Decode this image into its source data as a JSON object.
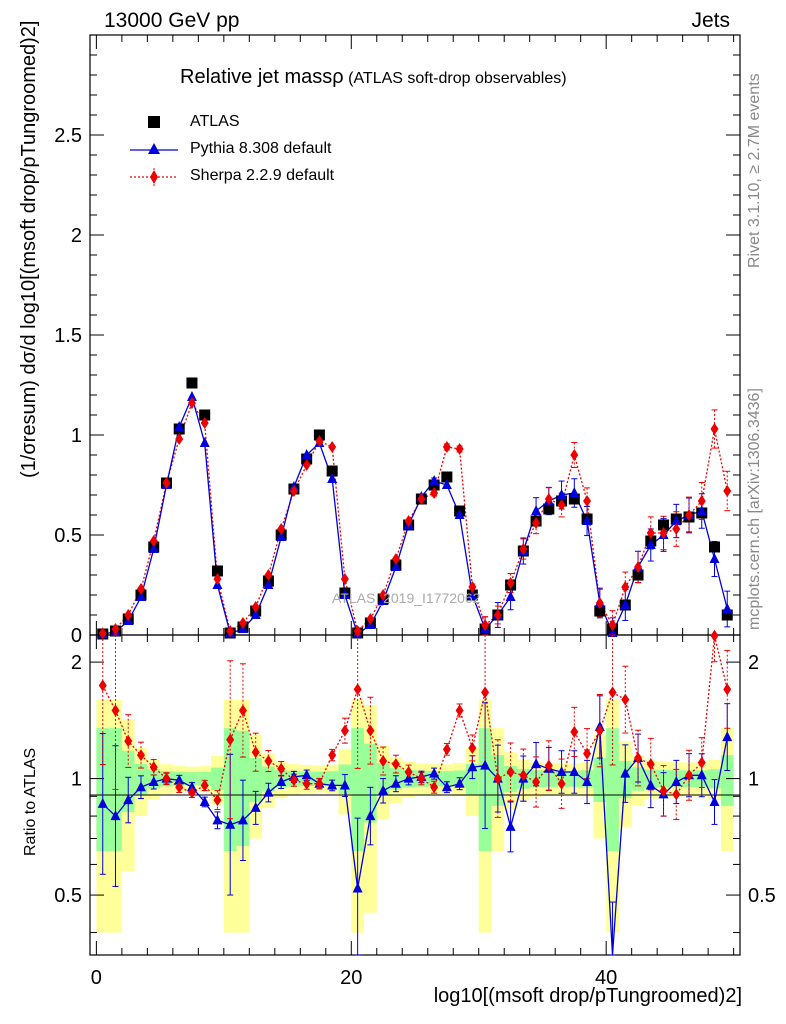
{
  "header": {
    "energy_label": "13000 GeV pp",
    "process_label": "Jets",
    "title_main": "Relative jet massρ",
    "title_sub": "(ATLAS soft-drop observables)"
  },
  "side": {
    "rivet_label": "Rivet 3.1.10, ≥ 2.7M events",
    "mcplots_label": "mcplots.cern.ch [arXiv:1306.3436]",
    "watermark": "ATLAS_2019_I1772062"
  },
  "axes": {
    "ylabel_top": "(1/σresum) dσ/d log10[(msoft drop/pTungroomed)2]",
    "ylabel_ratio": "Ratio to ATLAS",
    "xlabel": "log10[(msoft drop/pTungroomed)2]"
  },
  "legend": {
    "atlas": "ATLAS",
    "pythia": "Pythia 8.308 default",
    "sherpa": "Sherpa 2.2.9 default"
  },
  "colors": {
    "atlas": "#000000",
    "pythia": "#0000dd",
    "sherpa": "#ee0000",
    "band_inner": "#99ff99",
    "band_outer": "#ffff99"
  },
  "chart_data": {
    "type": "scatter",
    "x_ticks": [
      0,
      20,
      40
    ],
    "x_tick_labels": [
      "0",
      "20",
      "40"
    ],
    "xlim": [
      -0.5,
      50.5
    ],
    "top": {
      "ylim": [
        0,
        3.0
      ],
      "y_ticks": [
        0,
        0.5,
        1,
        1.5,
        2,
        2.5
      ],
      "y_tick_labels": [
        "0",
        "0.5",
        "1",
        "1.5",
        "2",
        "2.5"
      ]
    },
    "ratio": {
      "ylim": [
        0.35,
        2.35
      ],
      "y_ticks": [
        0.5,
        1,
        2
      ],
      "y_tick_labels": [
        "0.5",
        "1",
        "2"
      ]
    },
    "x": [
      0.5,
      1.5,
      2.5,
      3.5,
      4.5,
      5.5,
      6.5,
      7.5,
      8.5,
      9.5,
      10.5,
      11.5,
      12.5,
      13.5,
      14.5,
      15.5,
      16.5,
      17.5,
      18.5,
      19.5,
      20.5,
      21.5,
      22.5,
      23.5,
      24.5,
      25.5,
      26.5,
      27.5,
      28.5,
      29.5,
      30.5,
      31.5,
      32.5,
      33.5,
      34.5,
      35.5,
      36.5,
      37.5,
      38.5,
      39.5,
      40.5,
      41.5,
      42.5,
      43.5,
      44.5,
      45.5,
      46.5,
      47.5,
      48.5,
      49.5
    ],
    "series": [
      {
        "name": "ATLAS",
        "values": [
          0.005,
          0.02,
          0.08,
          0.2,
          0.44,
          0.76,
          1.03,
          1.26,
          1.1,
          0.32,
          0.01,
          0.04,
          0.12,
          0.27,
          0.5,
          0.73,
          0.88,
          1.0,
          0.82,
          0.21,
          0.01,
          0.06,
          0.18,
          0.35,
          0.55,
          0.68,
          0.75,
          0.79,
          0.62,
          0.2,
          0.03,
          0.1,
          0.25,
          0.42,
          0.57,
          0.63,
          0.67,
          0.68,
          0.58,
          0.12,
          0.03,
          0.15,
          0.3,
          0.47,
          0.55,
          0.58,
          0.59,
          0.61,
          0.44,
          0.1
        ]
      },
      {
        "name": "Pythia 8.308 default",
        "values": [
          0.004,
          0.016,
          0.07,
          0.19,
          0.43,
          0.75,
          1.04,
          1.19,
          0.96,
          0.25,
          0.008,
          0.03,
          0.1,
          0.25,
          0.49,
          0.74,
          0.9,
          0.96,
          0.78,
          0.2,
          0.005,
          0.05,
          0.17,
          0.34,
          0.55,
          0.69,
          0.77,
          0.75,
          0.6,
          0.2,
          0.03,
          0.1,
          0.19,
          0.42,
          0.62,
          0.67,
          0.7,
          0.71,
          0.57,
          0.16,
          0.01,
          0.15,
          0.34,
          0.45,
          0.5,
          0.57,
          0.6,
          0.62,
          0.38,
          0.13
        ]
      },
      {
        "name": "Sherpa 2.2.9 default",
        "values": [
          0.009,
          0.03,
          0.1,
          0.23,
          0.47,
          0.76,
          0.98,
          1.16,
          1.06,
          0.28,
          0.02,
          0.06,
          0.14,
          0.3,
          0.53,
          0.72,
          0.85,
          0.97,
          0.94,
          0.28,
          0.02,
          0.08,
          0.2,
          0.38,
          0.57,
          0.68,
          0.71,
          0.94,
          0.93,
          0.24,
          0.05,
          0.1,
          0.26,
          0.43,
          0.56,
          0.68,
          0.65,
          0.9,
          0.67,
          0.16,
          0.05,
          0.24,
          0.34,
          0.51,
          0.51,
          0.53,
          0.6,
          0.67,
          1.03,
          0.72
        ]
      }
    ],
    "ratio_series": [
      {
        "name": "Pythia 8.308 default",
        "values": [
          0.86,
          0.8,
          0.88,
          0.95,
          0.98,
          1.0,
          0.99,
          0.95,
          0.87,
          0.78,
          0.76,
          0.78,
          0.84,
          0.92,
          0.98,
          1.01,
          1.02,
          0.97,
          0.96,
          0.96,
          0.52,
          0.8,
          0.93,
          0.97,
          1.0,
          1.01,
          1.03,
          0.95,
          0.97,
          1.07,
          1.08,
          1.0,
          0.75,
          1.0,
          1.09,
          1.06,
          1.04,
          1.04,
          0.98,
          1.36,
          0.33,
          1.03,
          1.13,
          0.96,
          0.91,
          0.98,
          1.02,
          1.02,
          0.87,
          1.28
        ]
      },
      {
        "name": "Sherpa 2.2.9 default",
        "values": [
          1.74,
          1.5,
          1.25,
          1.15,
          1.07,
          1.0,
          0.95,
          0.92,
          0.96,
          0.88,
          1.26,
          1.5,
          1.17,
          1.11,
          1.06,
          0.99,
          0.97,
          0.97,
          1.15,
          1.33,
          1.7,
          1.33,
          1.11,
          1.09,
          1.04,
          1.0,
          0.95,
          1.19,
          1.5,
          1.2,
          1.67,
          1.0,
          1.04,
          1.02,
          0.98,
          1.08,
          0.97,
          1.32,
          1.16,
          1.33,
          1.67,
          1.6,
          1.13,
          1.09,
          0.93,
          0.91,
          1.02,
          1.1,
          2.34,
          1.7
        ]
      }
    ]
  }
}
